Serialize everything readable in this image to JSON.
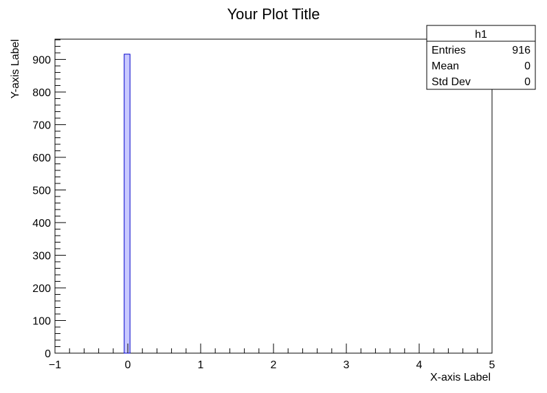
{
  "chart_data": {
    "type": "histogram",
    "title": "Your Plot Title",
    "xlabel": "X-axis Label",
    "ylabel": "Y-axis Label",
    "xlim": [
      -1,
      5
    ],
    "ylim": [
      0,
      962
    ],
    "x_ticks": [
      "−1",
      "0",
      "1",
      "2",
      "3",
      "4",
      "5"
    ],
    "x_tick_values": [
      -1,
      0,
      1,
      2,
      3,
      4,
      5
    ],
    "y_ticks": [
      "0",
      "100",
      "200",
      "300",
      "400",
      "500",
      "600",
      "700",
      "800",
      "900"
    ],
    "y_tick_values": [
      0,
      100,
      200,
      300,
      400,
      500,
      600,
      700,
      800,
      900
    ],
    "grid": false,
    "series": [
      {
        "bins": [
          {
            "low": -0.05,
            "high": 0.03,
            "count": 916
          }
        ],
        "fill_color": "#c8c8ff",
        "line_color": "#0000cc"
      }
    ],
    "stats_box": {
      "name": "h1",
      "position": "top-right",
      "rows": [
        {
          "label": "Entries",
          "value": "916"
        },
        {
          "label": "Mean",
          "value": "0"
        },
        {
          "label": "Std Dev",
          "value": "0"
        }
      ]
    }
  }
}
